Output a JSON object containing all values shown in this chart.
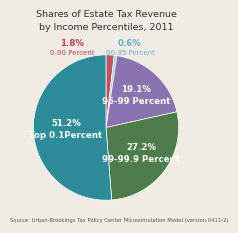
{
  "title_line1": "Shares of Estate Tax Revenue",
  "title_line2": "by Income Percentiles, 2011",
  "slices": [
    1.8,
    0.6,
    19.1,
    27.2,
    51.2
  ],
  "labels": [
    "0-90 Percent",
    "90-95 Percent",
    "95-99 Percent",
    "99-99.9 Percent",
    "Top 0.1Percent"
  ],
  "pct_labels": [
    "1.8%",
    "0.6%",
    "19.1%",
    "27.2%",
    "51.2%"
  ],
  "colors": [
    "#b85464",
    "#a8c8d8",
    "#8b72b0",
    "#4e7c4a",
    "#2e8b9a"
  ],
  "startangle": 90,
  "source_text": "Source: Urban-Brookings Tax Policy Center Microsimulation Model (version 0411-2)",
  "title_fontsize": 6.8,
  "label_fontsize": 5.0,
  "pct_fontsize": 6.2,
  "source_fontsize": 3.8,
  "color_1pct": "#c04060",
  "color_095": "#6aaec8",
  "background": "#f0ece4"
}
